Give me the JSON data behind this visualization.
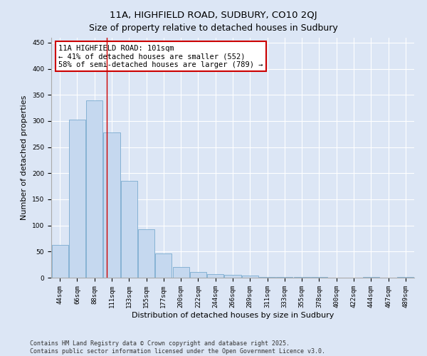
{
  "title1": "11A, HIGHFIELD ROAD, SUDBURY, CO10 2QJ",
  "title2": "Size of property relative to detached houses in Sudbury",
  "xlabel": "Distribution of detached houses by size in Sudbury",
  "ylabel": "Number of detached properties",
  "categories": [
    "44sqm",
    "66sqm",
    "88sqm",
    "111sqm",
    "133sqm",
    "155sqm",
    "177sqm",
    "200sqm",
    "222sqm",
    "244sqm",
    "266sqm",
    "289sqm",
    "311sqm",
    "333sqm",
    "355sqm",
    "378sqm",
    "400sqm",
    "422sqm",
    "444sqm",
    "467sqm",
    "489sqm"
  ],
  "values": [
    63,
    302,
    340,
    278,
    185,
    93,
    46,
    20,
    11,
    7,
    5,
    4,
    2,
    1,
    1,
    1,
    0,
    0,
    1,
    0,
    1
  ],
  "bar_color": "#c5d8ef",
  "bar_edge_color": "#7aabcf",
  "red_line_x": 2.72,
  "annotation_text": "11A HIGHFIELD ROAD: 101sqm\n← 41% of detached houses are smaller (552)\n58% of semi-detached houses are larger (789) →",
  "annotation_box_color": "#ffffff",
  "annotation_box_edge": "#cc0000",
  "ylim": [
    0,
    460
  ],
  "yticks": [
    0,
    50,
    100,
    150,
    200,
    250,
    300,
    350,
    400,
    450
  ],
  "background_color": "#dce6f5",
  "plot_background": "#dce6f5",
  "footer_line1": "Contains HM Land Registry data © Crown copyright and database right 2025.",
  "footer_line2": "Contains public sector information licensed under the Open Government Licence v3.0.",
  "title_fontsize": 9.5,
  "subtitle_fontsize": 9,
  "label_fontsize": 8,
  "tick_fontsize": 6.5,
  "annotation_fontsize": 7.5,
  "footer_fontsize": 6
}
